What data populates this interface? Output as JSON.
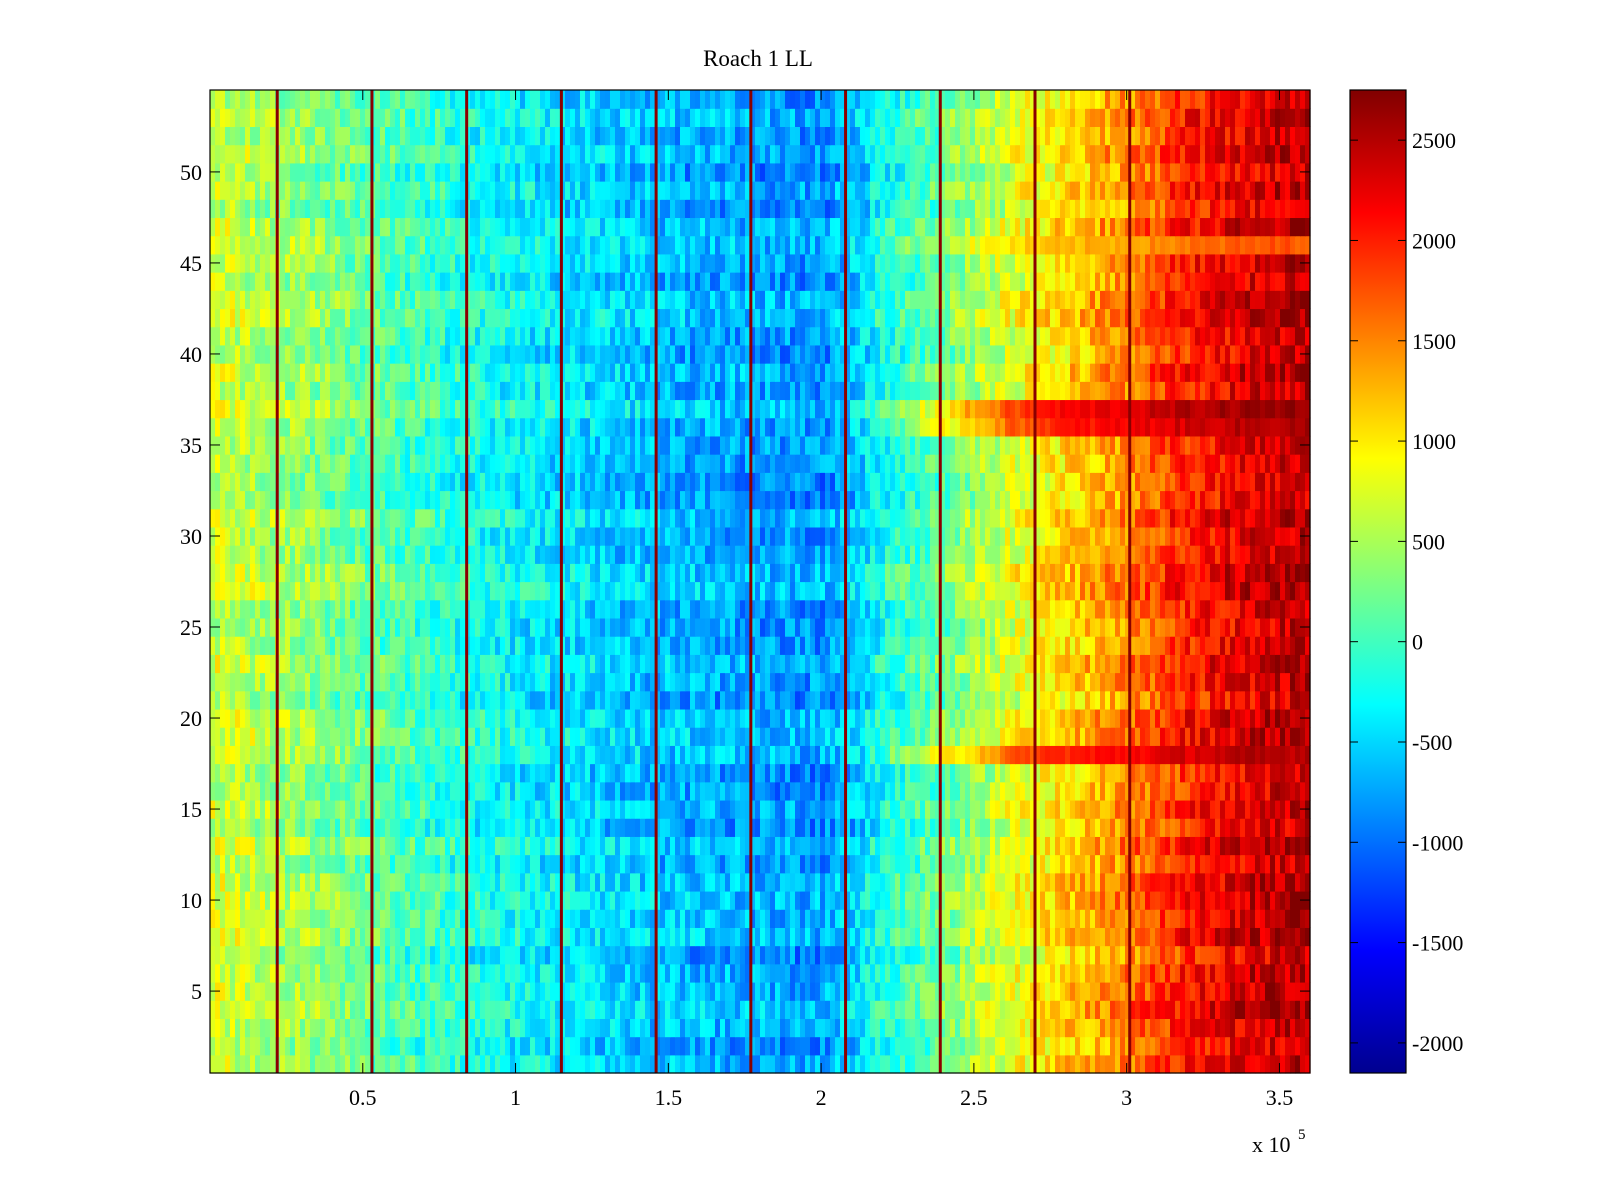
{
  "chart_data": {
    "type": "heatmap",
    "title": "Roach 1 LL",
    "xlabel": "",
    "ylabel": "",
    "x_multiplier_label": "x 10",
    "x_multiplier_exponent": "5",
    "xlim": [
      0,
      3.6
    ],
    "ylim": [
      0.5,
      54.5
    ],
    "x_ticks": [
      0.5,
      1,
      1.5,
      2,
      2.5,
      3,
      3.5
    ],
    "x_tick_labels": [
      "0.5",
      "1",
      "1.5",
      "2",
      "2.5",
      "3",
      "3.5"
    ],
    "y_ticks": [
      5,
      10,
      15,
      20,
      25,
      30,
      35,
      40,
      45,
      50
    ],
    "y_tick_labels": [
      "5",
      "10",
      "15",
      "20",
      "25",
      "30",
      "35",
      "40",
      "45",
      "50"
    ],
    "rows": 54,
    "colormap": "jet",
    "clim": [
      -2150,
      2750
    ],
    "colorbar_ticks": [
      -2000,
      -1500,
      -1000,
      -500,
      0,
      500,
      1000,
      1500,
      2000,
      2500
    ],
    "colorbar_tick_labels": [
      "-2000",
      "-1500",
      "-1000",
      "-500",
      "0",
      "500",
      "1000",
      "1500",
      "2000",
      "2500"
    ],
    "time_profile": {
      "x": [
        0,
        0.3,
        0.6,
        0.9,
        1.2,
        1.5,
        1.8,
        2.0,
        2.1,
        2.2,
        2.4,
        2.6,
        2.8,
        3.0,
        3.2,
        3.4,
        3.6
      ],
      "values": [
        700,
        400,
        50,
        -250,
        -450,
        -650,
        -750,
        -800,
        -600,
        -200,
        200,
        700,
        1100,
        1500,
        2000,
        2300,
        2500
      ]
    },
    "vertical_stripes": {
      "x": [
        0.22,
        0.53,
        0.84,
        1.15,
        1.46,
        1.77,
        2.08,
        2.39,
        2.7,
        3.01
      ],
      "value": 2700
    },
    "notable_rows": [
      {
        "row": 36,
        "description_value": 2600
      },
      {
        "row": 37,
        "description_value": 2700
      },
      {
        "row": 46,
        "description_value": 1200
      },
      {
        "row": 18,
        "description_value": 2500
      }
    ]
  }
}
